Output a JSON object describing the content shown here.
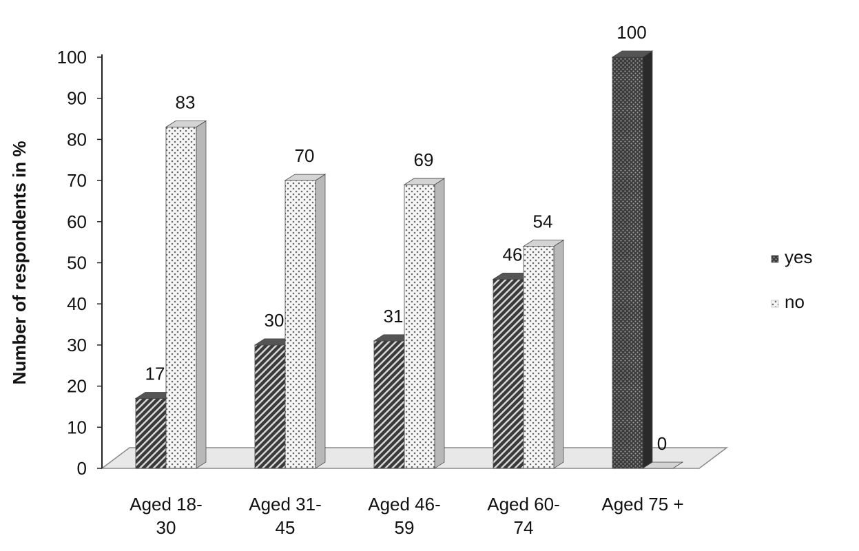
{
  "chart_data": {
    "type": "bar",
    "style": "3d-clustered-column",
    "title": "",
    "xlabel": "",
    "ylabel": "Number of respondents in %",
    "ylim": [
      0,
      100
    ],
    "yticks": [
      0,
      10,
      20,
      30,
      40,
      50,
      60,
      70,
      80,
      90,
      100
    ],
    "categories": [
      [
        "Aged 18-",
        "30"
      ],
      [
        "Aged 31-",
        "45"
      ],
      [
        "Aged 46-",
        "59"
      ],
      [
        "Aged 60-",
        "74"
      ],
      [
        "Aged 75 +"
      ]
    ],
    "series": [
      {
        "name": "yes",
        "values": [
          17,
          30,
          31,
          46,
          100
        ],
        "pattern": "dark-hatch"
      },
      {
        "name": "no",
        "values": [
          83,
          70,
          69,
          54,
          0
        ],
        "pattern": "light-dots"
      }
    ],
    "data_labels": true,
    "grid": false,
    "legend": "right"
  }
}
